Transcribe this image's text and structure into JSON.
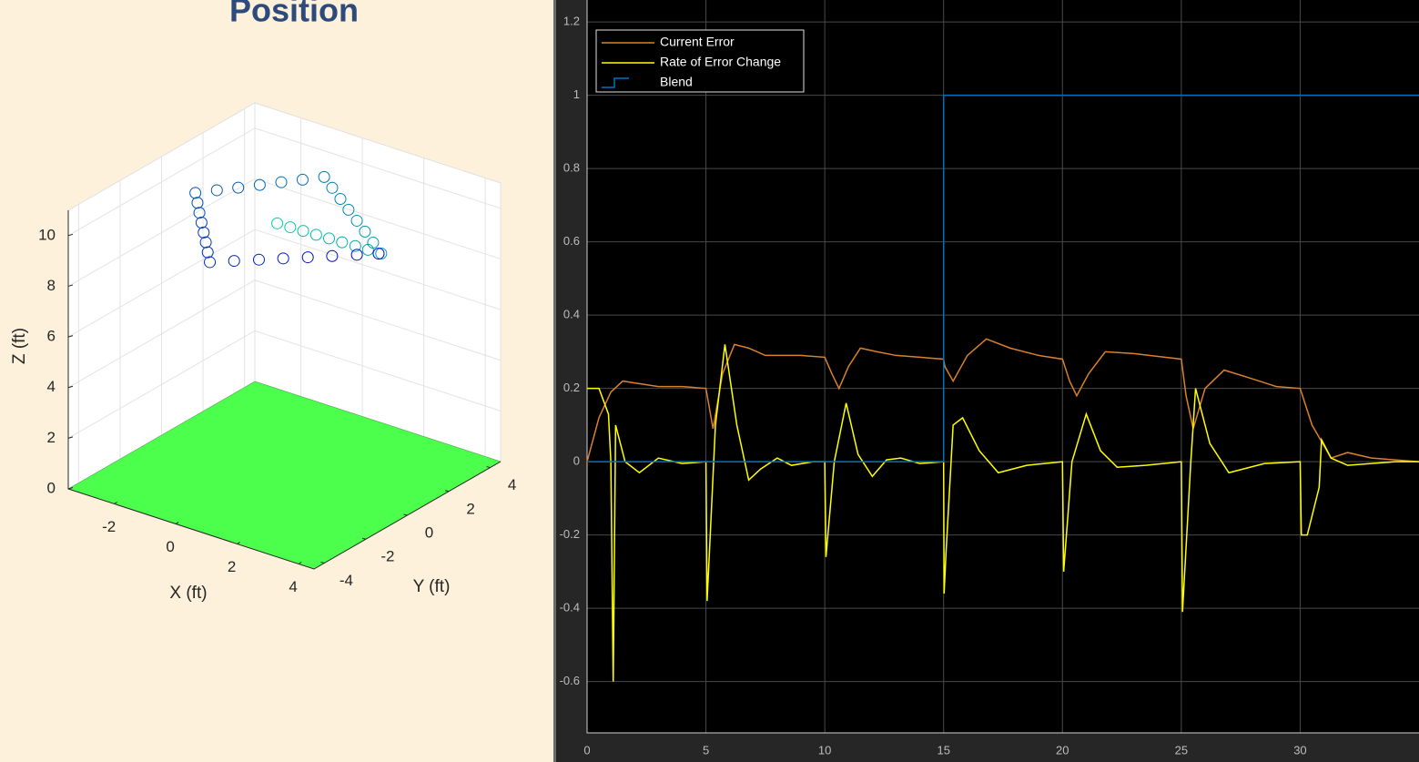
{
  "chart_data": [
    {
      "type": "scatter3d",
      "title": "Position",
      "xlabel": "X (ft)",
      "ylabel": "Y (ft)",
      "zlabel": "Z (ft)",
      "xlim": [
        -3.5,
        4.5
      ],
      "ylim": [
        -4.5,
        4.5
      ],
      "zlim": [
        0,
        11
      ],
      "xticks": [
        -2,
        0,
        2,
        4
      ],
      "yticks": [
        -4,
        -2,
        0,
        2,
        4
      ],
      "zticks": [
        0,
        2,
        4,
        6,
        8,
        10
      ],
      "grid": true,
      "floor_color": "#4cff4c",
      "colors": [
        "#00d2a0",
        "#0000c8"
      ],
      "x": [
        0.4,
        0.81,
        1.21,
        1.62,
        2.02,
        2.43,
        2.84,
        3.24,
        3.65,
        3.09,
        2.52,
        1.96,
        1.39,
        0.83,
        0.26,
        -0.3,
        -0.65,
        -1.0,
        -1.35,
        -1.7,
        -2.05,
        -2.4,
        -2.0,
        -1.6,
        -1.2,
        -0.8,
        -0.4,
        0.0,
        0.4,
        0.86,
        1.33,
        1.79,
        2.26,
        2.72,
        3.19,
        3.6
      ],
      "y": [
        -0.2,
        -0.18,
        -0.15,
        -0.13,
        -0.1,
        -0.08,
        -0.05,
        -0.03,
        0.0,
        0.44,
        0.89,
        1.33,
        1.77,
        2.21,
        2.66,
        3.1,
        2.58,
        2.07,
        1.55,
        1.03,
        0.52,
        0.0,
        -0.49,
        -0.99,
        -1.48,
        -1.97,
        -2.46,
        -2.96,
        -3.45,
        -2.96,
        -2.46,
        -1.97,
        -1.48,
        -0.99,
        -0.49,
        -0.05
      ],
      "z": [
        10,
        10,
        10,
        10,
        10,
        10,
        10,
        10,
        10,
        10,
        10,
        10,
        10,
        10,
        10,
        10,
        10,
        10,
        10,
        10,
        10,
        10,
        10,
        10,
        10,
        10,
        10,
        10,
        10,
        10,
        10,
        10,
        10,
        10,
        10,
        10
      ]
    },
    {
      "type": "line",
      "xlim": [
        0,
        35
      ],
      "ylim": [
        -0.74,
        1.26
      ],
      "xticks": [
        0,
        5,
        10,
        15,
        20,
        25,
        30
      ],
      "yticks": [
        -0.6,
        -0.4,
        -0.2,
        0,
        0.2,
        0.4,
        0.6,
        0.8,
        1,
        1.2
      ],
      "grid": true,
      "legend": "upper left",
      "series": [
        {
          "name": "Current Error",
          "color": "#d9822b",
          "x": [
            0,
            0.5,
            1,
            1.5,
            2,
            3,
            4,
            5,
            5.3,
            5.7,
            6.2,
            6.8,
            7.5,
            9,
            10,
            10.3,
            10.6,
            11,
            11.5,
            12.2,
            13,
            15,
            15.05,
            15.4,
            16,
            16.8,
            17.8,
            19,
            20,
            20.3,
            20.6,
            21.1,
            21.8,
            23,
            25,
            25.2,
            25.5,
            26,
            26.8,
            27.8,
            29,
            30,
            30.5,
            31.3,
            32,
            33,
            35
          ],
          "values": [
            0,
            0.12,
            0.19,
            0.22,
            0.215,
            0.205,
            0.205,
            0.2,
            0.09,
            0.24,
            0.32,
            0.31,
            0.29,
            0.29,
            0.285,
            0.24,
            0.2,
            0.26,
            0.31,
            0.3,
            0.29,
            0.28,
            0.26,
            0.22,
            0.29,
            0.335,
            0.31,
            0.29,
            0.28,
            0.22,
            0.18,
            0.24,
            0.3,
            0.295,
            0.28,
            0.18,
            0.09,
            0.2,
            0.25,
            0.23,
            0.205,
            0.2,
            0.1,
            0.01,
            0.025,
            0.01,
            0
          ]
        },
        {
          "name": "Rate of Error Change",
          "color": "#ffff00",
          "x": [
            0,
            0.5,
            0.9,
            1.0,
            1.1,
            1.2,
            1.6,
            2.2,
            3,
            4,
            5,
            5.05,
            5.4,
            5.8,
            6.3,
            6.8,
            7.3,
            8,
            8.6,
            9.5,
            10,
            10.05,
            10.4,
            10.9,
            11.4,
            12,
            12.6,
            13.2,
            14,
            15,
            15.02,
            15.1,
            15.4,
            15.8,
            16.5,
            17.3,
            18.5,
            20,
            20.05,
            20.4,
            21,
            21.6,
            22.3,
            23.5,
            25,
            25.05,
            25.4,
            25.6,
            26.2,
            27,
            28.5,
            30,
            30.05,
            30.3,
            30.8,
            30.9,
            31.3,
            32,
            34,
            35
          ],
          "values": [
            0.2,
            0.2,
            0.13,
            0,
            -0.6,
            0.1,
            0,
            -0.03,
            0.01,
            -0.005,
            0,
            -0.38,
            0.1,
            0.32,
            0.1,
            -0.05,
            -0.02,
            0.01,
            -0.01,
            0,
            0,
            -0.26,
            0,
            0.16,
            0.02,
            -0.04,
            0.005,
            0.01,
            -0.005,
            0,
            -0.36,
            -0.25,
            0.1,
            0.12,
            0.03,
            -0.03,
            -0.01,
            0,
            -0.3,
            0,
            0.13,
            0.03,
            -0.015,
            -0.01,
            0,
            -0.41,
            0,
            0.2,
            0.05,
            -0.03,
            -0.005,
            0,
            -0.2,
            -0.2,
            -0.07,
            0.06,
            0.01,
            -0.01,
            0,
            0
          ]
        },
        {
          "name": "Blend",
          "color": "#0072bd",
          "x": [
            0,
            15,
            15,
            35
          ],
          "values": [
            0,
            0,
            1,
            1
          ]
        }
      ]
    }
  ]
}
